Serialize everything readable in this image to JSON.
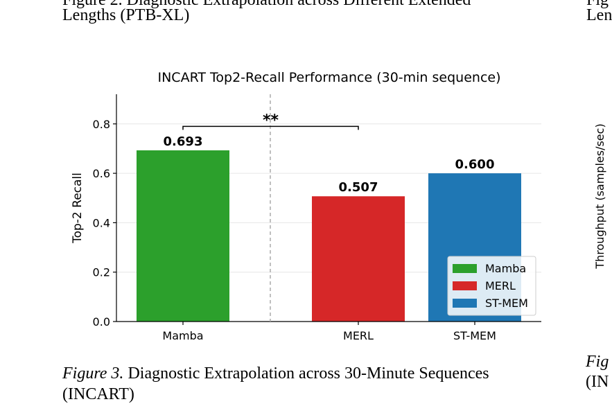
{
  "top_fragments": {
    "left_line1": "Figure 2. Diagnostic Extrapolation across Different Extended",
    "left_line2": "Lengths (PTB-XL)",
    "right_line1": "Fig",
    "right_line2": "Len"
  },
  "caption": {
    "lead": "Figure 3.",
    "line1_rest": " Diagnostic Extrapolation across 30-Minute Sequences",
    "line2": "(INCART)"
  },
  "right_panel": {
    "ylabel": "Throughput (samples/sec)",
    "caption_lead": "Fig",
    "caption_line2": "(IN"
  },
  "chart_data": {
    "type": "bar",
    "title": "INCART Top2-Recall Performance (30-min sequence)",
    "ylabel": "Top-2 Recall",
    "xlabel": "",
    "ylim": [
      0,
      0.92
    ],
    "yticks": [
      "0.0",
      "0.2",
      "0.4",
      "0.6",
      "0.8"
    ],
    "yticks_values": [
      0.0,
      0.2,
      0.4,
      0.6,
      0.8
    ],
    "categories": [
      "Mamba",
      "MERL",
      "ST-MEM"
    ],
    "values": [
      0.693,
      0.507,
      0.6
    ],
    "value_labels": [
      "0.693",
      "0.507",
      "0.600"
    ],
    "colors": [
      "#2ca02c",
      "#d62728",
      "#1f77b4"
    ],
    "legend": [
      "Mamba",
      "MERL",
      "ST-MEM"
    ],
    "legend_position": "lower-right",
    "grid": "horizontal",
    "significance": {
      "from": "Mamba",
      "to": "MERL",
      "label": "**",
      "at": 0.79
    },
    "divider": "dashed vertical line after Mamba"
  }
}
